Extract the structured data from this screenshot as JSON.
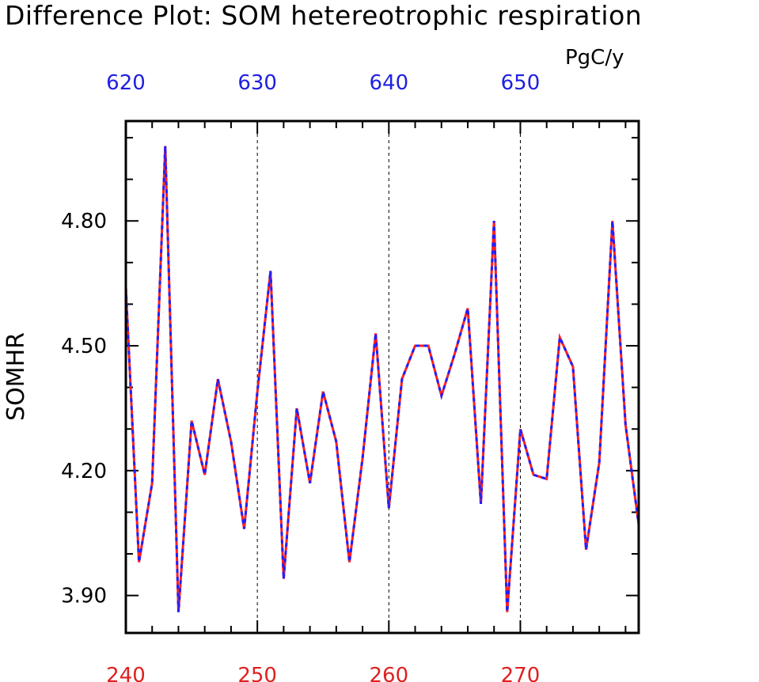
{
  "chart_data": {
    "type": "line",
    "title": "Difference Plot: SOM hetereotrophic respiration",
    "units": "PgC/y",
    "ylabel": "SOMHR",
    "xlim": [
      240,
      279
    ],
    "ylim": [
      3.81,
      5.04
    ],
    "yticks": [
      "3.90",
      "4.20",
      "4.50",
      "4.80"
    ],
    "x_bottom_ticks": [
      "240",
      "250",
      "260",
      "270"
    ],
    "x_top_ticks": [
      "620",
      "630",
      "640",
      "650"
    ],
    "x_top_offset": 380,
    "colors": {
      "bottom_axis": "#e02020",
      "top_axis": "#2020e0",
      "line_a": "#ff2020",
      "line_b": "#2020ff"
    },
    "grid_vertical": true,
    "x": [
      240,
      241,
      242,
      243,
      244,
      245,
      246,
      247,
      248,
      249,
      250,
      251,
      252,
      253,
      254,
      255,
      256,
      257,
      258,
      259,
      260,
      261,
      262,
      263,
      264,
      265,
      266,
      267,
      268,
      269,
      270,
      271,
      272,
      273,
      274,
      275,
      276,
      277,
      278,
      279
    ],
    "values": [
      4.64,
      3.98,
      4.17,
      4.98,
      3.86,
      4.32,
      4.19,
      4.42,
      4.27,
      4.06,
      4.39,
      4.68,
      3.94,
      4.35,
      4.17,
      4.39,
      4.27,
      3.98,
      4.23,
      4.53,
      4.11,
      4.42,
      4.5,
      4.5,
      4.38,
      4.48,
      4.59,
      4.12,
      4.8,
      3.86,
      4.3,
      4.19,
      4.18,
      4.52,
      4.45,
      4.01,
      4.22,
      4.8,
      4.31,
      4.07
    ]
  }
}
